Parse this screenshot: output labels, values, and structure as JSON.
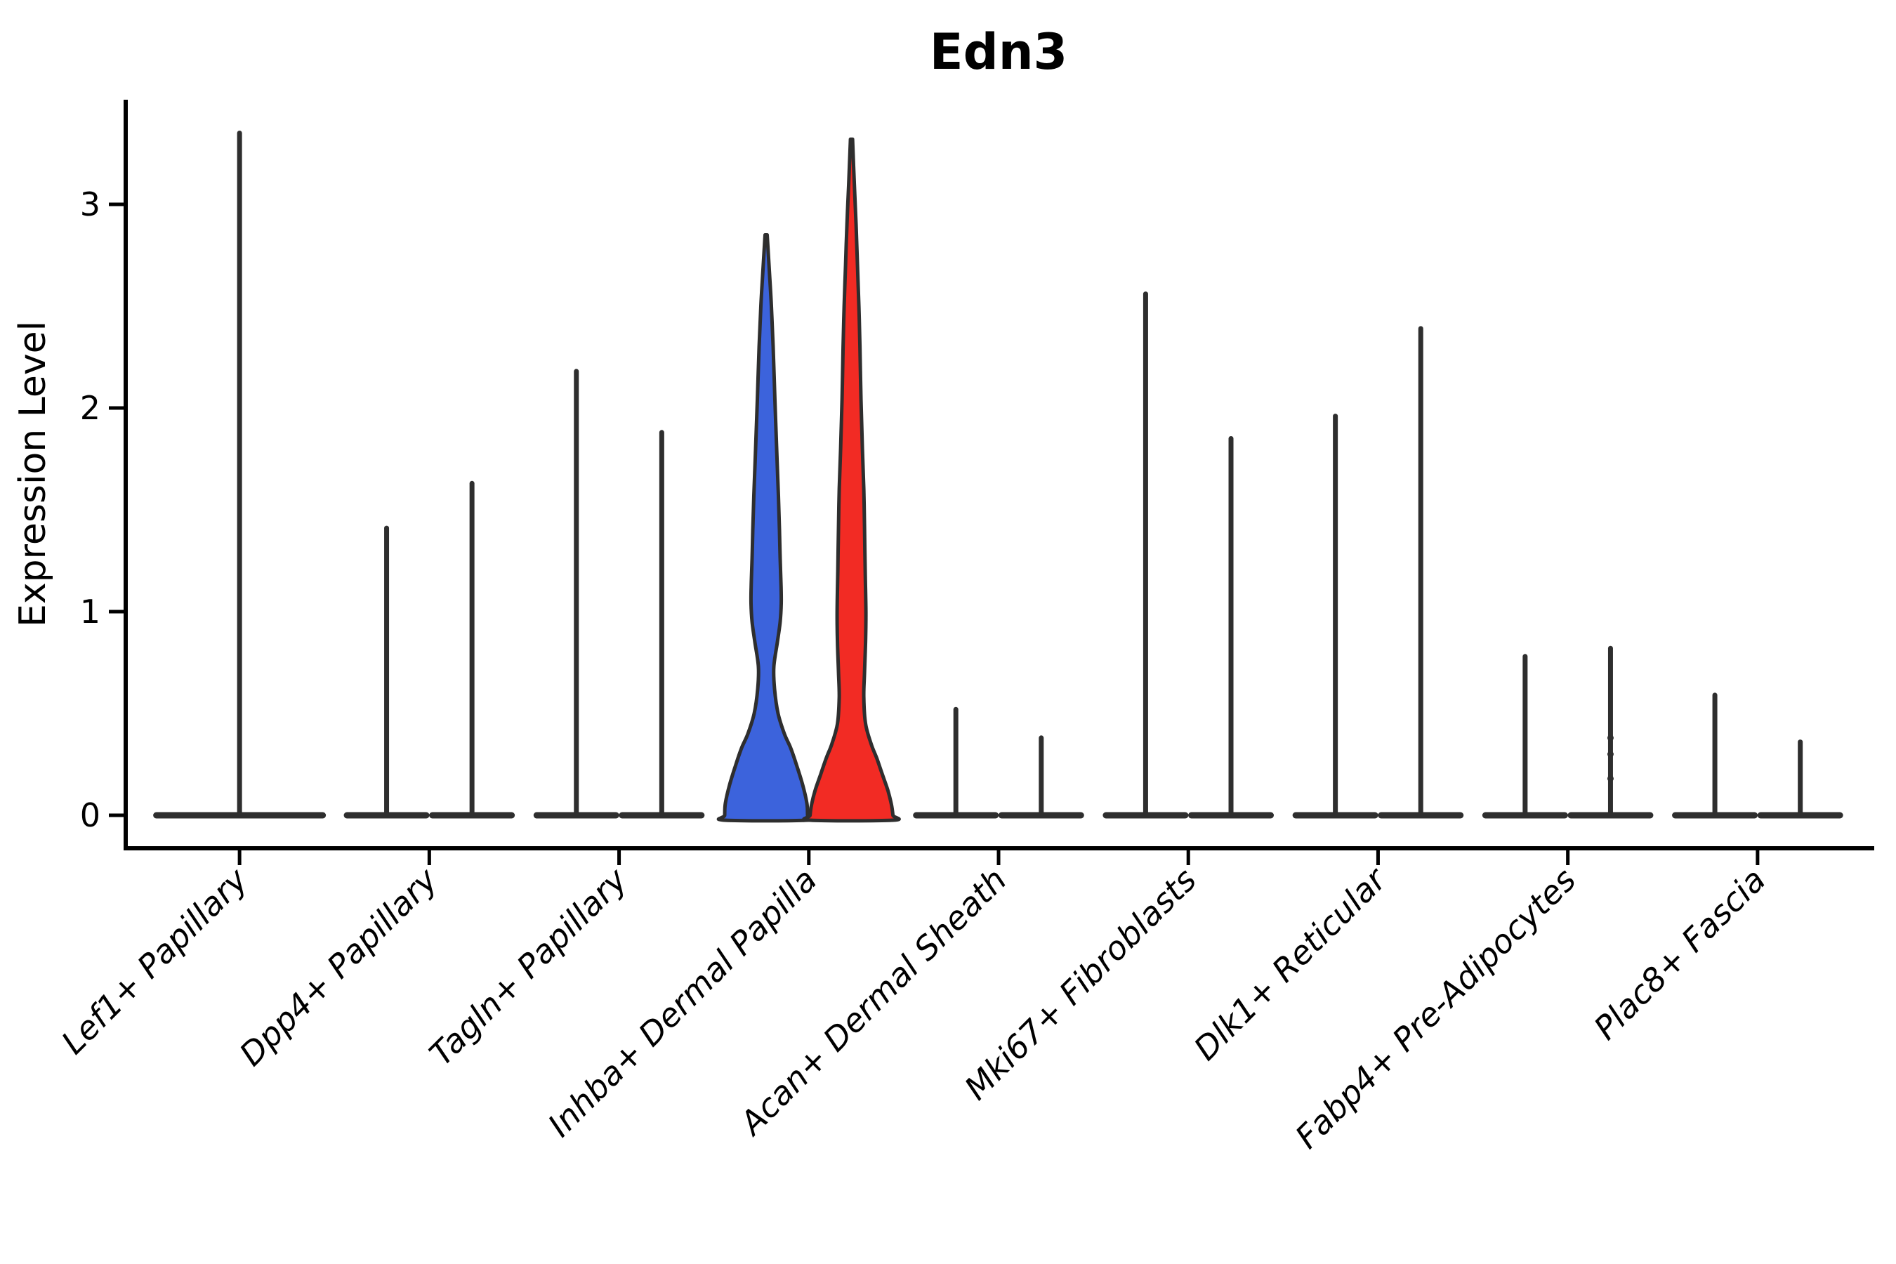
{
  "title": "Edn3",
  "chart_data": {
    "type": "violin",
    "title": "Edn3",
    "xlabel": "",
    "ylabel": "Expression Level",
    "ylim": [
      -0.16,
      3.51
    ],
    "yticks": [
      0,
      1,
      2,
      3
    ],
    "ytick_labels": [
      "0",
      "1",
      "2",
      "3"
    ],
    "grid": false,
    "legend_position": "none",
    "colors": {
      "line": "#2e2e2e",
      "axis": "#000000",
      "blue_fill": "#3C63DC",
      "red_fill": "#F22B24"
    },
    "categories": [
      "Lef1+ Papillary",
      "Dpp4+ Papillary",
      "Tagln+ Papillary",
      "Inhba+ Dermal Papilla",
      "Acan+ Dermal Sheath",
      "Mki67+ Fibroblasts",
      "Dlk1+ Reticular",
      "Fabp4+ Pre-Adipocytes",
      "Plac8+ Fascia"
    ],
    "groups": [
      {
        "category": "Lef1+ Papillary",
        "violins": [
          {
            "slot": "center",
            "style": "spike",
            "max": 3.35
          }
        ]
      },
      {
        "category": "Dpp4+ Papillary",
        "violins": [
          {
            "slot": "left",
            "style": "spike",
            "max": 1.41
          },
          {
            "slot": "right",
            "style": "spike",
            "max": 1.63
          }
        ]
      },
      {
        "category": "Tagln+ Papillary",
        "violins": [
          {
            "slot": "left",
            "style": "spike",
            "max": 2.18
          },
          {
            "slot": "right",
            "style": "spike",
            "max": 1.88
          }
        ]
      },
      {
        "category": "Inhba+ Dermal Papilla",
        "violins": [
          {
            "slot": "left",
            "style": "shaped",
            "max": 2.85,
            "fill": "#3C63DC",
            "profile": [
              [
                2.85,
                1.5
              ],
              [
                2.65,
                5
              ],
              [
                2.5,
                7.5
              ],
              [
                2.3,
                10
              ],
              [
                2.04,
                12.5
              ],
              [
                1.8,
                15
              ],
              [
                1.57,
                17.5
              ],
              [
                1.4,
                19
              ],
              [
                1.26,
                20
              ],
              [
                1.12,
                21.3
              ],
              [
                1.04,
                21.5
              ],
              [
                0.95,
                20
              ],
              [
                0.85,
                16
              ],
              [
                0.73,
                11
              ],
              [
                0.62,
                12
              ],
              [
                0.5,
                17
              ],
              [
                0.4,
                26
              ],
              [
                0.33,
                35
              ],
              [
                0.25,
                43
              ],
              [
                0.15,
                52
              ],
              [
                0.06,
                58
              ],
              [
                0.0,
                59
              ]
            ]
          },
          {
            "slot": "right",
            "style": "shaped",
            "max": 3.32,
            "fill": "#F22B24",
            "profile": [
              [
                3.32,
                1.5
              ],
              [
                3.1,
                4
              ],
              [
                2.9,
                6.5
              ],
              [
                2.7,
                8.5
              ],
              [
                2.5,
                10.5
              ],
              [
                2.3,
                12
              ],
              [
                2.04,
                13.5
              ],
              [
                1.8,
                15.5
              ],
              [
                1.6,
                17.5
              ],
              [
                1.42,
                18.5
              ],
              [
                1.2,
                19.5
              ],
              [
                1.0,
                20.5
              ],
              [
                0.85,
                20
              ],
              [
                0.7,
                18.5
              ],
              [
                0.58,
                17.5
              ],
              [
                0.45,
                20
              ],
              [
                0.35,
                28
              ],
              [
                0.28,
                36
              ],
              [
                0.2,
                44
              ],
              [
                0.12,
                52
              ],
              [
                0.05,
                57
              ],
              [
                0.0,
                59
              ]
            ]
          }
        ]
      },
      {
        "category": "Acan+ Dermal Sheath",
        "violins": [
          {
            "slot": "left",
            "style": "spike",
            "max": 0.52
          },
          {
            "slot": "right",
            "style": "spike",
            "max": 0.38
          }
        ]
      },
      {
        "category": "Mki67+ Fibroblasts",
        "violins": [
          {
            "slot": "left",
            "style": "spike",
            "max": 2.56
          },
          {
            "slot": "right",
            "style": "spike",
            "max": 1.85
          }
        ]
      },
      {
        "category": "Dlk1+ Reticular",
        "violins": [
          {
            "slot": "left",
            "style": "spike",
            "max": 1.96
          },
          {
            "slot": "right",
            "style": "spike",
            "max": 2.39
          }
        ]
      },
      {
        "category": "Fabp4+ Pre-Adipocytes",
        "violins": [
          {
            "slot": "left",
            "style": "spike",
            "max": 0.78
          },
          {
            "slot": "right",
            "style": "spike",
            "max": 0.82,
            "dots": [
              0.38,
              0.3,
              0.18
            ]
          }
        ]
      },
      {
        "category": "Plac8+ Fascia",
        "violins": [
          {
            "slot": "left",
            "style": "spike",
            "max": 0.59
          },
          {
            "slot": "right",
            "style": "spike",
            "max": 0.36
          }
        ]
      }
    ]
  }
}
